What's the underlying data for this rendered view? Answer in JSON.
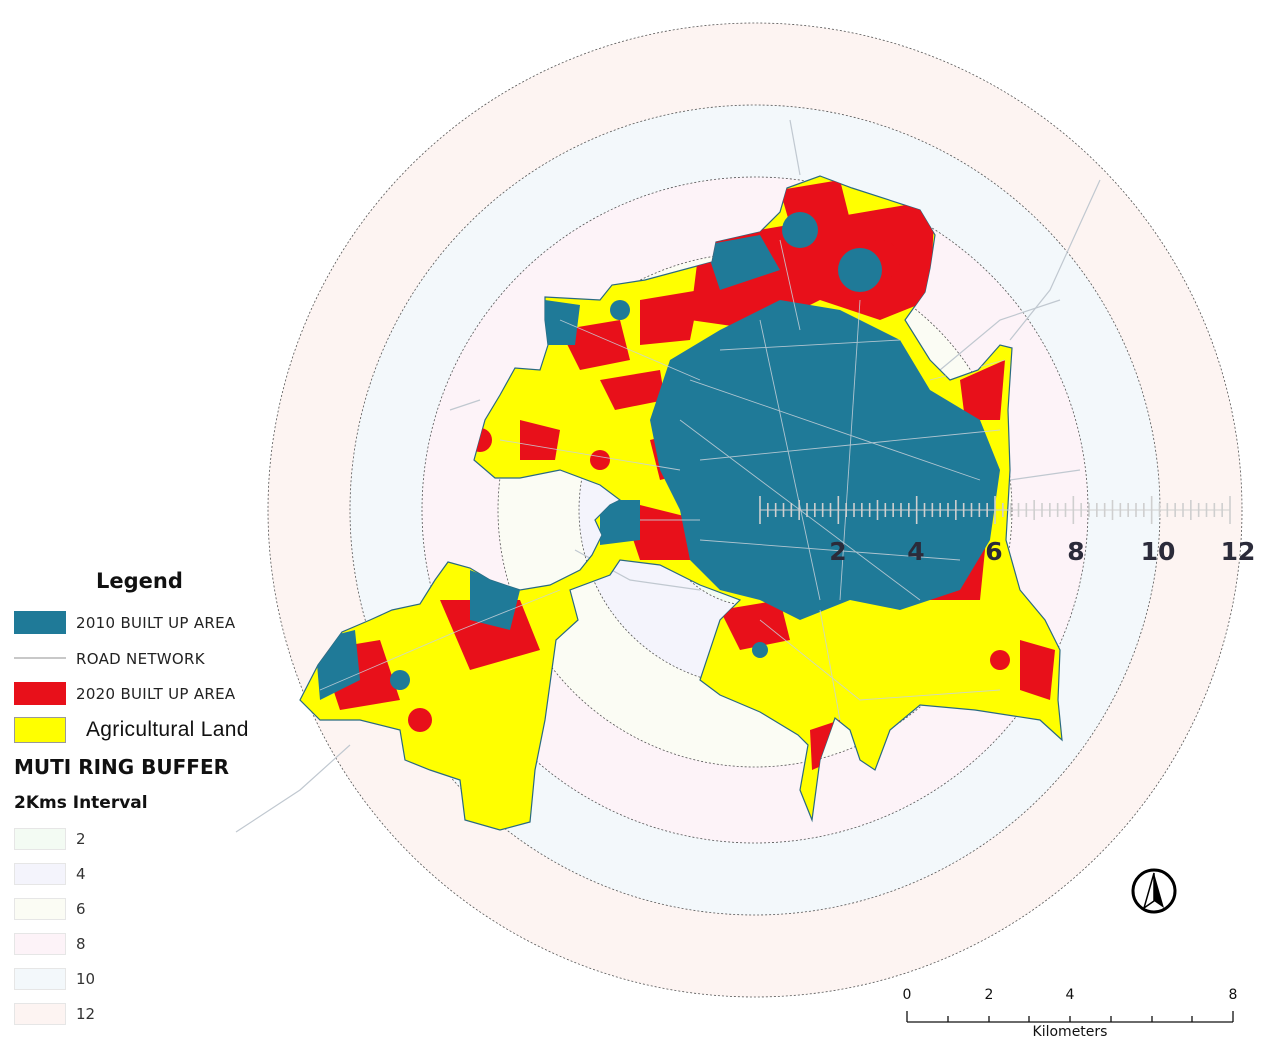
{
  "map": {
    "colors": {
      "built_2010": "#1f7a98",
      "built_2020": "#e8101a",
      "agricultural": "#ffff00",
      "road": "#c8d2da"
    },
    "ring_axis": {
      "labels": [
        "2",
        "4",
        "6",
        "8",
        "10",
        "12"
      ]
    }
  },
  "legend": {
    "title": "Legend",
    "items": [
      {
        "label": "2010 BUILT UP AREA",
        "color": "#1f7a98"
      },
      {
        "label": "ROAD NETWORK",
        "color": "#c8c8c8"
      },
      {
        "label": "2020 BUILT UP AREA",
        "color": "#e8101a"
      },
      {
        "label": "Agricultural Land",
        "color": "#ffff00"
      }
    ],
    "buffer_title": "MUTI RING BUFFER",
    "buffer_subtitle": "2Kms Interval",
    "rings": [
      {
        "label": "2",
        "color": "#f3fbf3"
      },
      {
        "label": "4",
        "color": "#f4f4fc"
      },
      {
        "label": "6",
        "color": "#fbfcf4"
      },
      {
        "label": "8",
        "color": "#fdf3f8"
      },
      {
        "label": "10",
        "color": "#f3f8fb"
      },
      {
        "label": "12",
        "color": "#fdf4f2"
      }
    ]
  },
  "north_arrow": {
    "icon": "north-arrow-icon"
  },
  "scale_bar": {
    "labels": [
      "0",
      "2",
      "4",
      "8"
    ],
    "unit": "Kilometers"
  }
}
